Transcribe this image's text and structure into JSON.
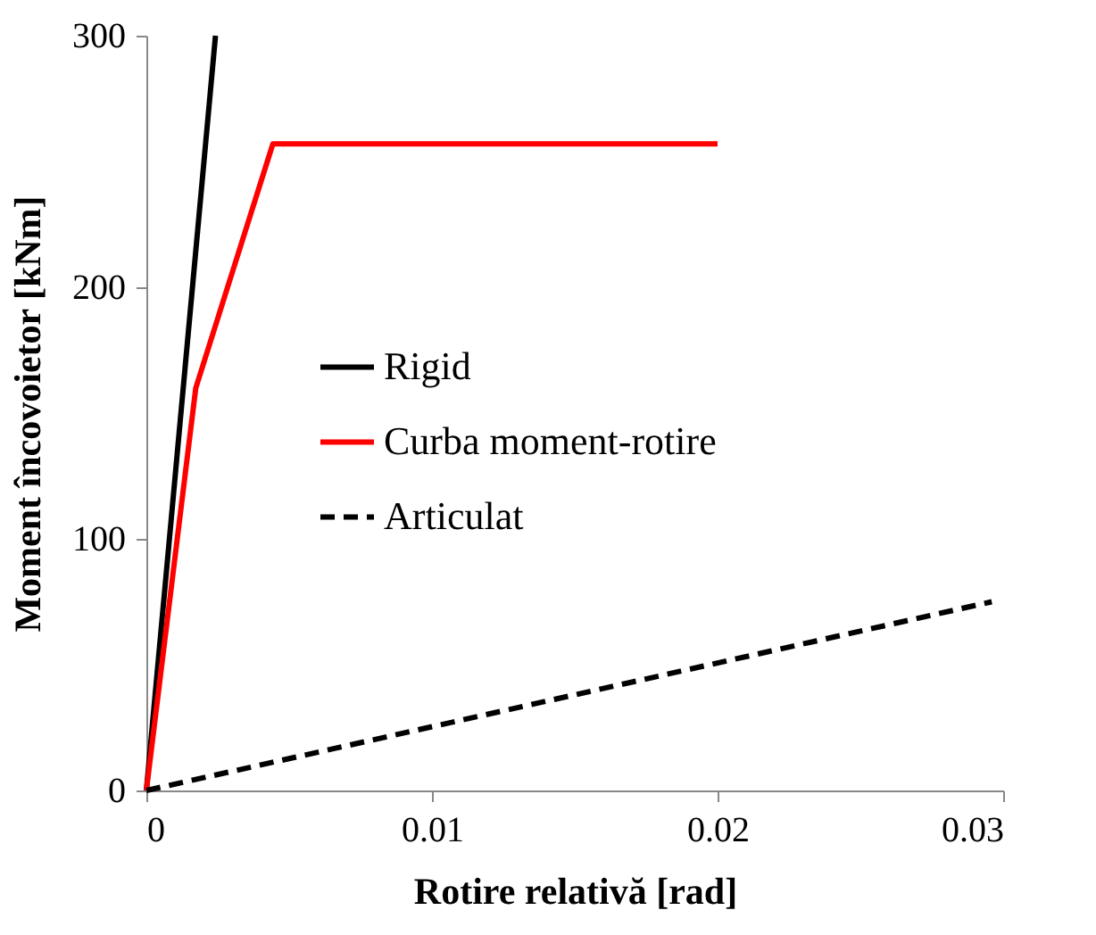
{
  "chart_data": {
    "type": "line",
    "xlabel": "Rotire relativă [rad]",
    "ylabel": "Moment încovoietor [kNm]",
    "xlim": [
      0,
      0.03
    ],
    "xticks": [
      0,
      0.01,
      0.02,
      0.03
    ],
    "ylim": [
      0,
      300
    ],
    "yticks": [
      0,
      100,
      200,
      300
    ],
    "grid": false,
    "legend": "center left",
    "marker": "none",
    "series": [
      {
        "name": "Rigid",
        "color": "#000000",
        "line_style": "solid",
        "x": [
          0,
          0.00242
        ],
        "values": [
          0,
          300
        ]
      },
      {
        "name": "Curba moment-rotire",
        "color": "#ff0000",
        "line_style": "solid",
        "x": [
          0,
          0.00173,
          0.00443,
          0.02
        ],
        "values": [
          0,
          160,
          257,
          257
        ]
      },
      {
        "name": "Articulat",
        "color": "#000000",
        "line_style": "dashed",
        "x": [
          0,
          0.0296
        ],
        "values": [
          0,
          75
        ]
      }
    ]
  }
}
